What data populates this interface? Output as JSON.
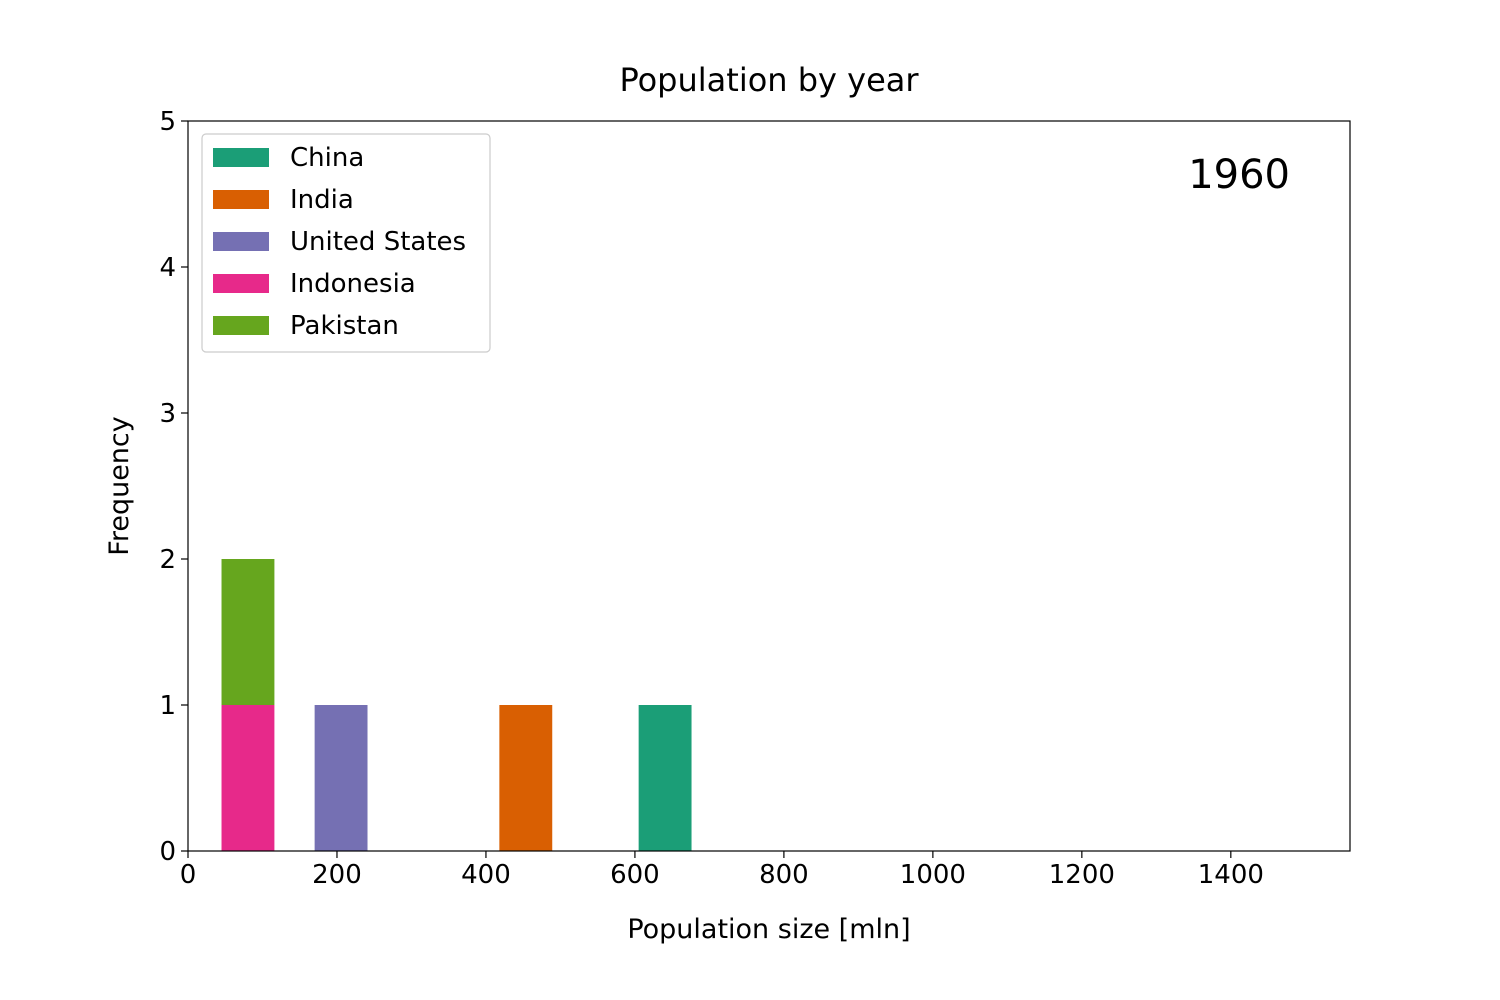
{
  "chart_data": {
    "type": "bar",
    "stacked": true,
    "title": "Population by year",
    "xlabel": "Population size [mln]",
    "ylabel": "Frequency",
    "annotation": "1960",
    "xlim": [
      0,
      1560
    ],
    "ylim": [
      0,
      5
    ],
    "xticks": [
      0,
      200,
      400,
      600,
      800,
      1000,
      1200,
      1400
    ],
    "yticks": [
      0,
      1,
      2,
      3,
      4,
      5
    ],
    "grid": false,
    "legend_position": "top-left",
    "series": [
      {
        "name": "China",
        "color": "#1b9e77",
        "bars": [
          {
            "x0": 605,
            "x1": 676,
            "count": 1
          }
        ]
      },
      {
        "name": "India",
        "color": "#d95f02",
        "bars": [
          {
            "x0": 418,
            "x1": 489,
            "count": 1
          }
        ]
      },
      {
        "name": "United States",
        "color": "#7570b3",
        "bars": [
          {
            "x0": 170,
            "x1": 241,
            "count": 1
          }
        ]
      },
      {
        "name": "Indonesia",
        "color": "#e7298a",
        "bars": [
          {
            "x0": 45,
            "x1": 116,
            "count": 1
          }
        ]
      },
      {
        "name": "Pakistan",
        "color": "#66a61e",
        "bars": [
          {
            "x0": 45,
            "x1": 116,
            "count": 1
          }
        ]
      }
    ]
  }
}
